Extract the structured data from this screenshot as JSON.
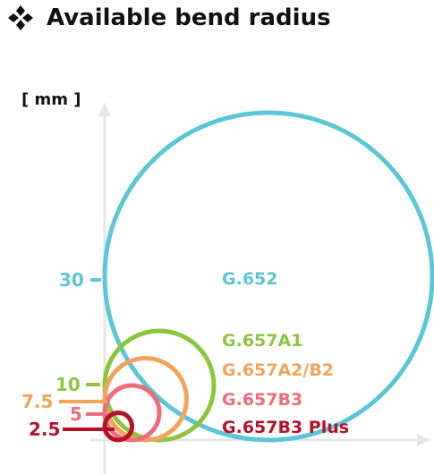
{
  "title": "Available bend radius",
  "bullet_icon": "four-diamonds-icon",
  "unit_label": "[ mm ]",
  "colors": {
    "axis": "#e6e6e6",
    "text": "#111111"
  },
  "chart_data": {
    "type": "diagram",
    "y_ticks": [
      {
        "value": 30,
        "label": "30",
        "color": "#5bc6d6"
      },
      {
        "value": 10,
        "label": "10",
        "color": "#8cc63f"
      },
      {
        "value": 7.5,
        "label": "7.5",
        "color": "#f2a35c"
      },
      {
        "value": 5,
        "label": "5",
        "color": "#ef6c7a"
      },
      {
        "value": 2.5,
        "label": "2.5",
        "color": "#b5122a"
      }
    ],
    "circles": [
      {
        "name": "G.652",
        "radius_mm": 30,
        "color": "#5bc6d6"
      },
      {
        "name": "G.657A1",
        "radius_mm": 10,
        "color": "#8cc63f"
      },
      {
        "name": "G.657A2/B2",
        "radius_mm": 7.5,
        "color": "#f2a35c"
      },
      {
        "name": "G.657B3",
        "radius_mm": 5,
        "color": "#ef6c7a"
      },
      {
        "name": "G.657B3 Plus",
        "radius_mm": 2.5,
        "color": "#b5122a"
      }
    ]
  }
}
